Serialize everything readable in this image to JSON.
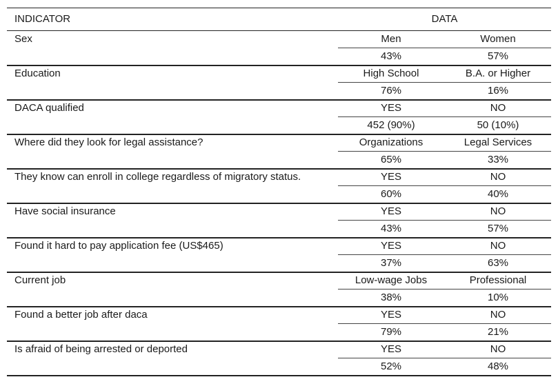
{
  "table": {
    "header": [
      "INDICATOR",
      "DATA"
    ],
    "rows": [
      {
        "indicator": "Sex",
        "labels": [
          "Men",
          "Women"
        ],
        "values": [
          "43%",
          "57%"
        ]
      },
      {
        "indicator": "Education",
        "labels": [
          "High School",
          "B.A. or Higher"
        ],
        "values": [
          "76%",
          "16%"
        ]
      },
      {
        "indicator": "DACA qualified",
        "labels": [
          "YES",
          "NO"
        ],
        "values": [
          "452 (90%)",
          "50 (10%)"
        ]
      },
      {
        "indicator": "Where did they look for legal assistance?",
        "labels": [
          "Organizations",
          "Legal Services"
        ],
        "values": [
          "65%",
          "33%"
        ]
      },
      {
        "indicator": "They know can enroll in college regardless of migratory status.",
        "labels": [
          "YES",
          "NO"
        ],
        "values": [
          "60%",
          "40%"
        ]
      },
      {
        "indicator": "Have social insurance",
        "labels": [
          "YES",
          "NO"
        ],
        "values": [
          "43%",
          "57%"
        ]
      },
      {
        "indicator": "Found it hard to pay application fee (US$465)",
        "labels": [
          "YES",
          "NO"
        ],
        "values": [
          "37%",
          "63%"
        ]
      },
      {
        "indicator": "Current job",
        "labels": [
          "Low-wage Jobs",
          "Professional"
        ],
        "values": [
          "38%",
          "10%"
        ]
      },
      {
        "indicator": "Found a better job after daca",
        "labels": [
          "YES",
          "NO"
        ],
        "values": [
          "79%",
          "21%"
        ]
      },
      {
        "indicator": "Is afraid of being arrested or deported",
        "labels": [
          "YES",
          "NO"
        ],
        "values": [
          "52%",
          "48%"
        ]
      }
    ]
  }
}
